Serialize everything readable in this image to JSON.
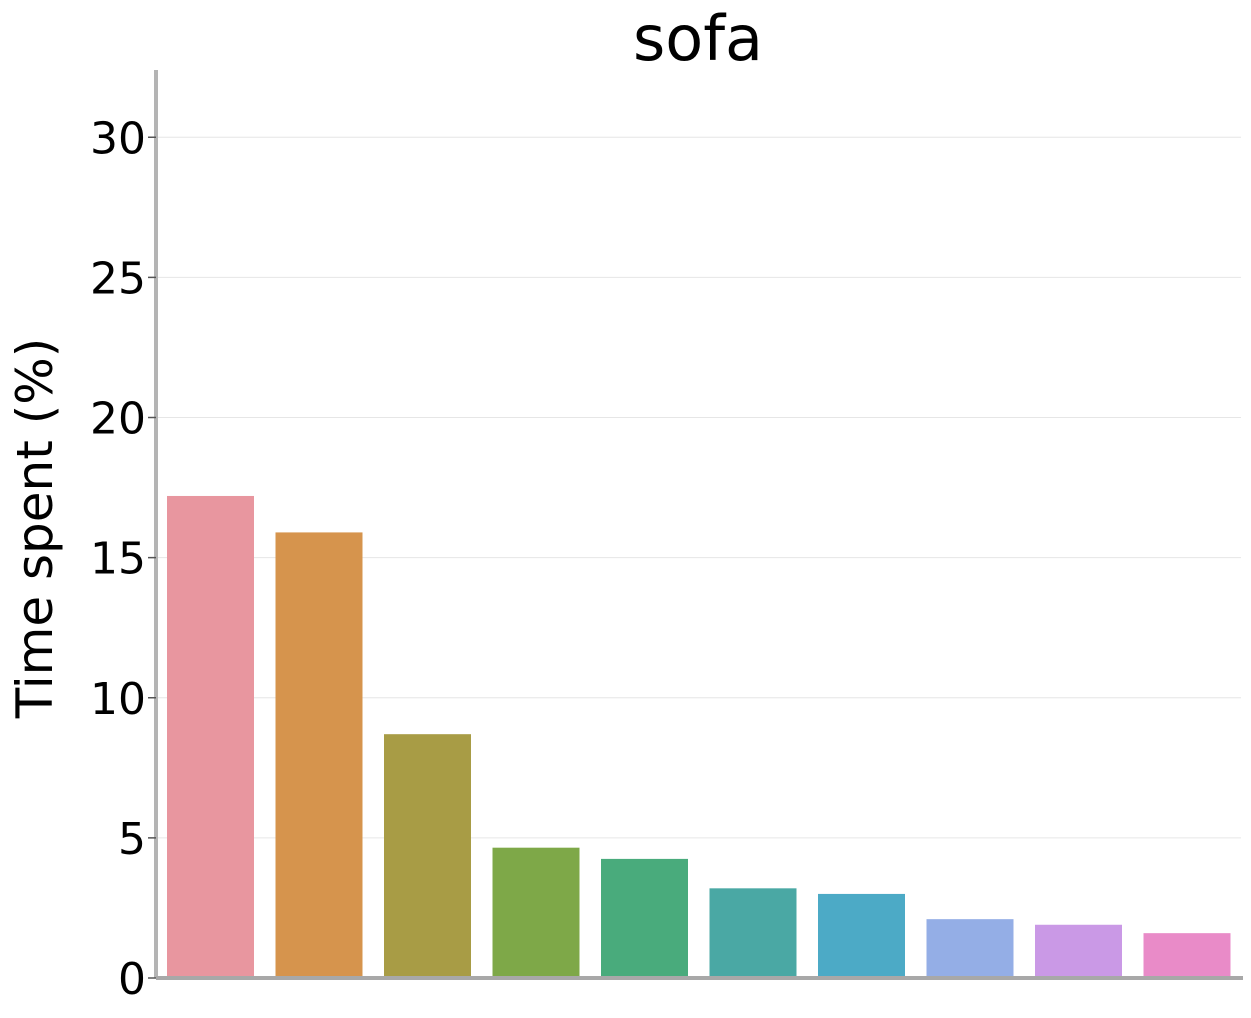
{
  "chart_data": {
    "type": "bar",
    "title": "sofa",
    "xlabel": "",
    "ylabel": "Time spent (%)",
    "ylim": [
      0,
      32.4
    ],
    "yticks": [
      0,
      5,
      10,
      15,
      20,
      25,
      30
    ],
    "ytick_labels": [
      "0",
      "5",
      "10",
      "15",
      "20",
      "25",
      "30"
    ],
    "grid": "horizontal",
    "categories": [
      "",
      "",
      "",
      "",
      "",
      "",
      "",
      "",
      "",
      ""
    ],
    "values": [
      17.2,
      15.9,
      8.7,
      4.65,
      4.25,
      3.2,
      3.0,
      2.1,
      1.9,
      1.6
    ],
    "colors": [
      "#e8969f",
      "#d6944d",
      "#a89c45",
      "#7ea848",
      "#49ab7c",
      "#4aa8a4",
      "#4caac6",
      "#94aee6",
      "#ca99e6",
      "#e98bc8"
    ]
  }
}
